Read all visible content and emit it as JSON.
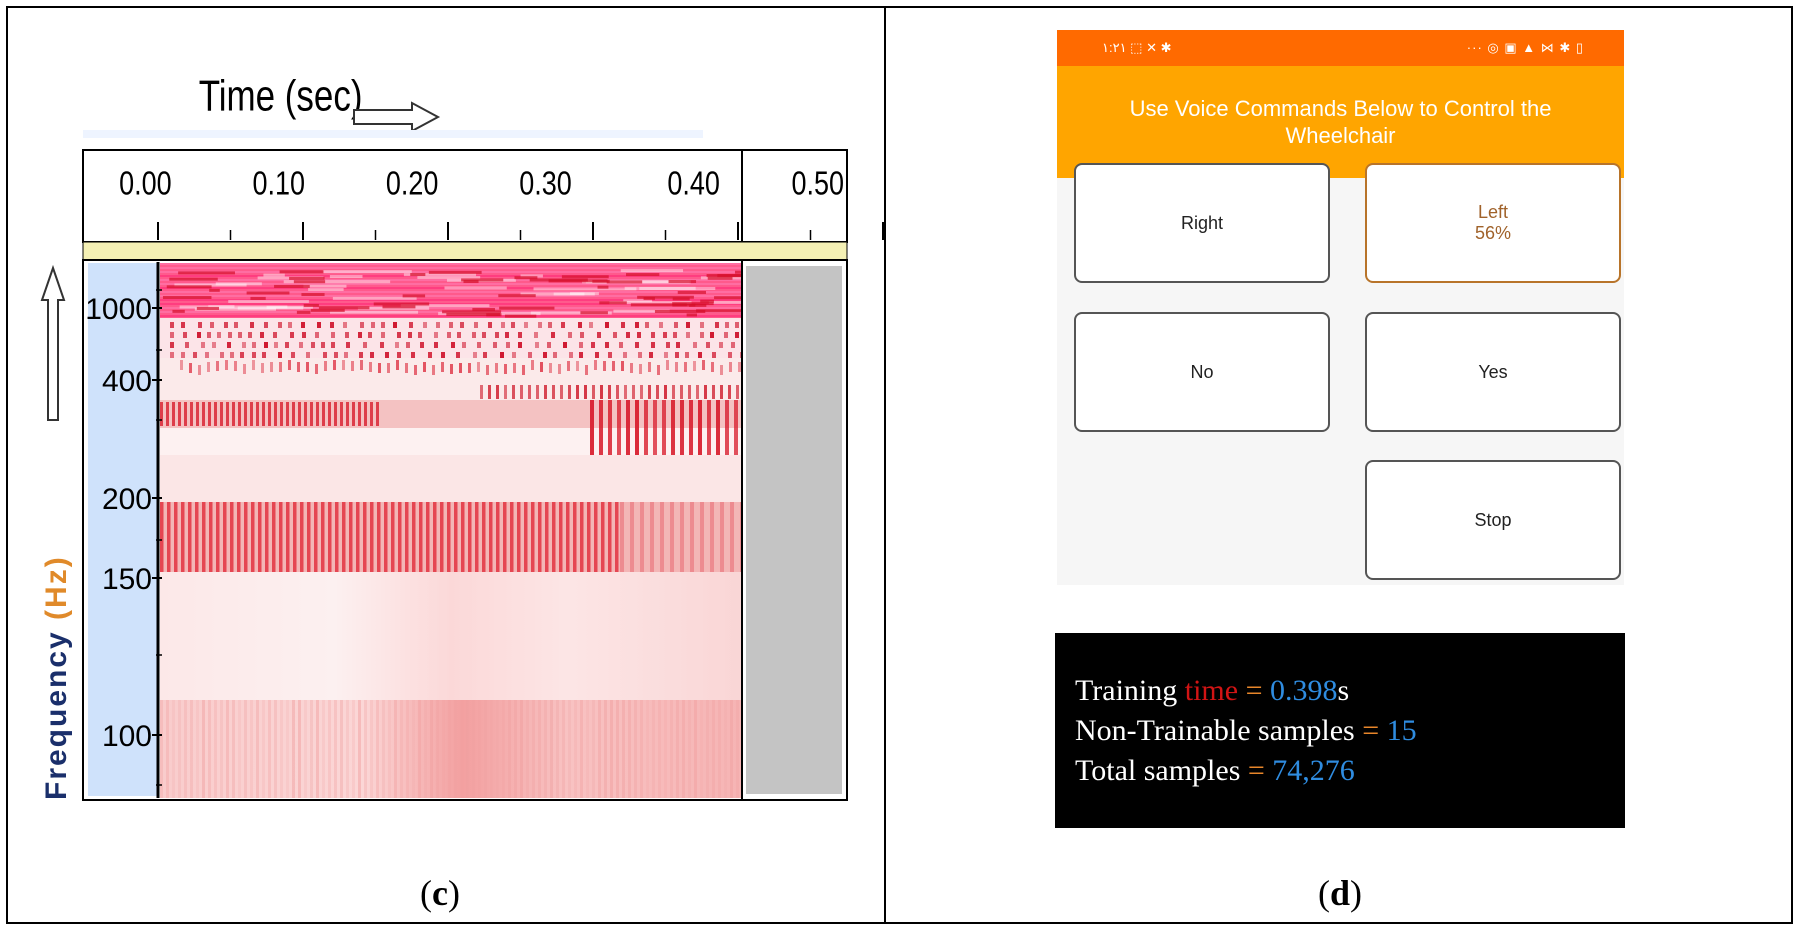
{
  "panels": {
    "left_label_letter": "c",
    "right_label_letter": "d"
  },
  "spectrogram": {
    "x_axis_title": "Time (sec)",
    "y_axis_title": "Frequency (Hz)",
    "x_ticks": [
      "0.00",
      "0.10",
      "0.20",
      "0.30",
      "0.40",
      "0.50"
    ],
    "y_ticks": [
      "1000",
      "400",
      "200",
      "150",
      "100"
    ],
    "end_time_sec": 0.4,
    "colors": {
      "hot": "#e8143c",
      "magenta": "#ff3aa0",
      "pale": "#fbe2e2",
      "axis_bg": "#cfe2fb",
      "gray_region": "#c4c4c4",
      "strip": "#f4f0b4"
    }
  },
  "phone": {
    "status_left": "١:٢١ ⬚ ✕ ✱",
    "status_right": "··· ◎ ▣ ▲ ⋈ ✱ ▯",
    "header_title": "Use Voice Commands Below to Control the Wheelchair",
    "buttons": {
      "right": {
        "label": "Right"
      },
      "left": {
        "label": "Left",
        "confidence": "56%"
      },
      "no": {
        "label": "No"
      },
      "yes": {
        "label": "Yes"
      },
      "stop": {
        "label": "Stop"
      }
    },
    "colors": {
      "status_bar": "#ff6a00",
      "header": "#ffa500",
      "active_border": "#b8742a"
    }
  },
  "stats": {
    "line1_a": "Training ",
    "line1_b": "time",
    "line1_eq": " = ",
    "line1_val": "0.398",
    "line1_unit": "s",
    "line2_a": "Non-Trainable samples",
    "line2_eq": " = ",
    "line2_val": "15",
    "line3_a": "Total samples",
    "line3_eq": " = ",
    "line3_val": "74,276"
  }
}
